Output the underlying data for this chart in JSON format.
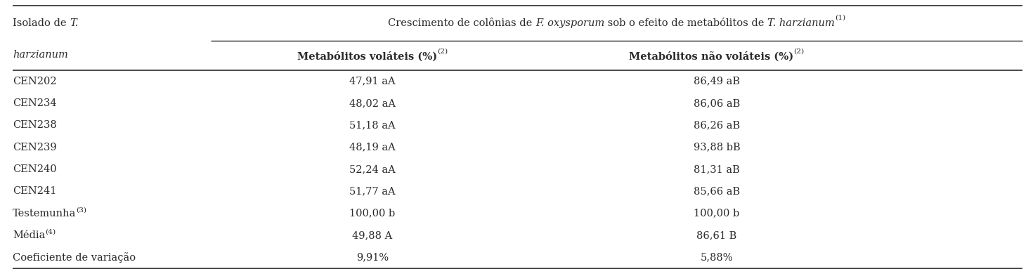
{
  "bg_color": "#ffffff",
  "text_color": "#2a2a2a",
  "font_size": 10.5,
  "bold_font_size": 10.5,
  "rows": [
    [
      "CEN202",
      "47,91 aA",
      "86,49 aB"
    ],
    [
      "CEN234",
      "48,02 aA",
      "86,06 aB"
    ],
    [
      "CEN238",
      "51,18 aA",
      "86,26 aB"
    ],
    [
      "CEN239",
      "48,19 aA",
      "93,88 bB"
    ],
    [
      "CEN240",
      "52,24 aA",
      "81,31 aB"
    ],
    [
      "CEN241",
      "51,77 aA",
      "85,66 aB"
    ],
    [
      "Testemunha_(3)",
      "100,00 b",
      "100,00 b"
    ],
    [
      "Média_(4)",
      "49,88 A",
      "86,61 B"
    ],
    [
      "Coeficiente de variação",
      "9,91%",
      "5,88%"
    ]
  ]
}
